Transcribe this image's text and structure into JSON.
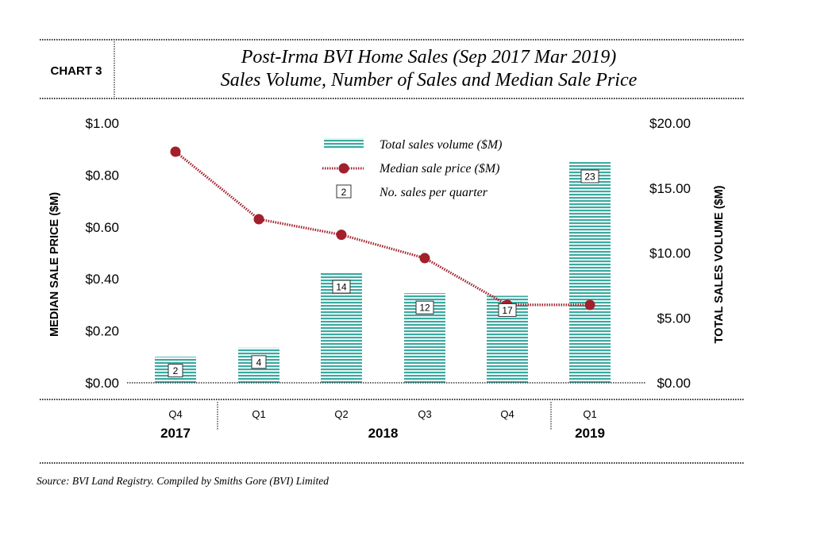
{
  "chart_label": "CHART 3",
  "source": "Source: BVI Land Registry. Compiled by Smiths Gore (BVI) Limited",
  "colors": {
    "bar": "#3aaaa0",
    "line": "#a2202b",
    "rule": "#333333",
    "text": "#1a1a1a"
  },
  "chart_data": {
    "type": "bar",
    "title": "Post-Irma BVI Home Sales (Sep 2017 Mar 2019)",
    "subtitle": "Sales Volume, Number of Sales and Median Sale Price",
    "categories": [
      "Q4",
      "Q1",
      "Q2",
      "Q3",
      "Q4",
      "Q1"
    ],
    "years": [
      {
        "label": "2017",
        "span": [
          0,
          0
        ]
      },
      {
        "label": "2018",
        "span": [
          1,
          4
        ]
      },
      {
        "label": "2019",
        "span": [
          5,
          5
        ]
      }
    ],
    "series": [
      {
        "name": "Total sales volume ($M)",
        "type": "bar",
        "axis": "right",
        "values": [
          2.0,
          2.7,
          8.5,
          6.9,
          6.7,
          17.0
        ]
      },
      {
        "name": "Median sale price ($M)",
        "type": "line",
        "axis": "left",
        "values": [
          0.89,
          0.63,
          0.57,
          0.48,
          0.3,
          0.3
        ]
      }
    ],
    "counts": {
      "name": "No. sales per quarter",
      "values": [
        "2",
        "4",
        "14",
        "12",
        "17",
        "23"
      ]
    },
    "legend": {
      "volume_label": "Total sales volume ($M)",
      "price_label": "Median sale price ($M)",
      "count_label": "No. sales per quarter",
      "count_sample": "2"
    },
    "ylabel_left": "MEDIAN SALE PRICE ($M)",
    "ylabel_right": "TOTAL SALES VOLUME ($M)",
    "ylim_left": [
      0,
      1.0
    ],
    "ylim_right": [
      0,
      20.0
    ],
    "yticks_left": [
      "$0.00",
      "$0.20",
      "$0.40",
      "$0.60",
      "$0.80",
      "$1.00"
    ],
    "yticks_right": [
      "$0.00",
      "$5.00",
      "$10.00",
      "$15.00",
      "$20.00"
    ]
  }
}
